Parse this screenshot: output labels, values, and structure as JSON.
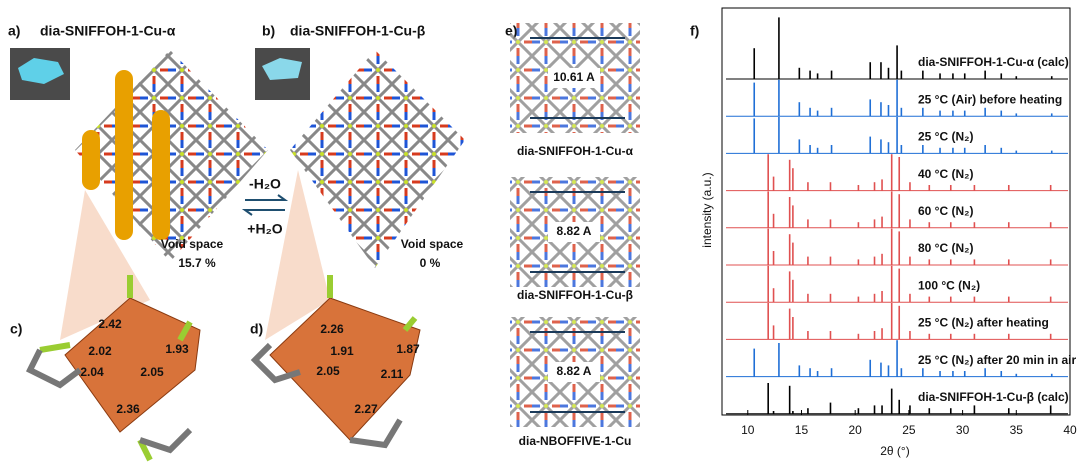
{
  "panels": {
    "a": {
      "label": "a)",
      "title": "dia-SNIFFOH-1-Cu-α",
      "void_label": "Void space",
      "void_value": "15.7 %"
    },
    "b": {
      "label": "b)",
      "title": "dia-SNIFFOH-1-Cu-β",
      "void_label": "Void space",
      "void_value": "0 %"
    },
    "arrows": {
      "forward": "-H₂O",
      "back": "+H₂O"
    },
    "c": {
      "label": "c)",
      "bonds": [
        "2.42",
        "2.02",
        "1.93",
        "2.04",
        "2.05",
        "2.36"
      ]
    },
    "d": {
      "label": "d)",
      "bonds": [
        "2.26",
        "1.91",
        "1.87",
        "2.05",
        "2.11",
        "2.27"
      ]
    },
    "e": {
      "label": "e)",
      "items": [
        {
          "distance": "10.61 A",
          "caption": "dia-SNIFFOH-1-Cu-α"
        },
        {
          "distance": "8.82 A",
          "caption": "dia-SNIFFOH-1-Cu-β"
        },
        {
          "distance": "8.82 A",
          "caption": "dia-NBOFFIVE-1-Cu"
        }
      ]
    }
  },
  "chart_data": {
    "type": "stacked-pattern",
    "label": "f)",
    "xlabel": "2θ (°)",
    "ylabel": "intensity (a.u.)",
    "xlim": [
      7.6,
      40
    ],
    "xticks": [
      10,
      15,
      20,
      25,
      30,
      35,
      40
    ],
    "series": [
      {
        "name": "dia-SNIFFOH-1-Cu-α (calc)",
        "color": "#000000",
        "peaks": [
          10.6,
          12.9,
          14.8,
          15.8,
          16.5,
          17.8,
          21.4,
          22.4,
          23.1,
          23.9,
          24.3,
          26.3,
          27.9,
          29.1,
          30.2,
          32.1,
          33.6,
          35.0,
          38.3
        ],
        "values": [
          1.1,
          2.2,
          0.4,
          0.3,
          0.2,
          0.3,
          0.6,
          0.6,
          0.4,
          1.2,
          0.3,
          0.3,
          0.2,
          0.2,
          0.2,
          0.3,
          0.2,
          0.1,
          0.1
        ]
      },
      {
        "name": "25 °C (Air) before heating",
        "color": "#1f6fd6",
        "peaks": [
          10.6,
          12.9,
          14.8,
          15.8,
          16.5,
          17.8,
          21.4,
          22.4,
          23.1,
          23.9,
          24.3,
          26.3,
          27.9,
          29.1,
          30.2,
          32.1,
          33.6,
          35.0,
          38.3
        ],
        "values": [
          1.2,
          1.3,
          0.5,
          0.3,
          0.2,
          0.3,
          0.6,
          0.5,
          0.4,
          1.3,
          0.3,
          0.3,
          0.2,
          0.2,
          0.2,
          0.3,
          0.2,
          0.1,
          0.1
        ]
      },
      {
        "name": "25 °C (N₂)",
        "color": "#1f6fd6",
        "peaks": [
          10.6,
          12.9,
          14.8,
          15.8,
          16.5,
          17.8,
          21.4,
          22.4,
          23.1,
          23.9,
          24.3,
          26.3,
          27.9,
          29.1,
          30.2,
          32.1,
          33.6,
          35.0,
          38.3
        ],
        "values": [
          1.25,
          1.3,
          0.5,
          0.3,
          0.2,
          0.3,
          0.6,
          0.5,
          0.4,
          1.3,
          0.3,
          0.3,
          0.2,
          0.2,
          0.2,
          0.3,
          0.2,
          0.1,
          0.1
        ]
      },
      {
        "name": "40 °C (N₂)",
        "color": "#e05050",
        "peaks": [
          11.9,
          12.4,
          13.9,
          14.2,
          15.6,
          17.7,
          20.3,
          21.8,
          22.5,
          23.4,
          24.1,
          25.1,
          26.9,
          28.9,
          31.1,
          34.3,
          38.2
        ],
        "values": [
          1.3,
          0.5,
          1.1,
          0.8,
          0.3,
          0.3,
          0.2,
          0.3,
          0.4,
          1.3,
          1.2,
          0.3,
          0.2,
          0.2,
          0.2,
          0.2,
          0.2
        ]
      },
      {
        "name": "60 °C (N₂)",
        "color": "#e05050",
        "peaks": [
          11.9,
          12.4,
          13.9,
          14.2,
          15.6,
          17.7,
          20.3,
          21.8,
          22.5,
          23.4,
          24.1,
          25.1,
          26.9,
          28.9,
          31.1,
          34.3,
          38.2
        ],
        "values": [
          1.3,
          0.5,
          1.1,
          0.8,
          0.3,
          0.3,
          0.2,
          0.3,
          0.4,
          1.3,
          1.2,
          0.3,
          0.2,
          0.2,
          0.2,
          0.2,
          0.2
        ]
      },
      {
        "name": "80 °C (N₂)",
        "color": "#e05050",
        "peaks": [
          11.9,
          12.4,
          13.9,
          14.2,
          15.6,
          17.7,
          20.3,
          21.8,
          22.5,
          23.4,
          24.1,
          25.1,
          26.9,
          28.9,
          31.1,
          34.3,
          38.2
        ],
        "values": [
          1.3,
          0.5,
          1.1,
          0.8,
          0.3,
          0.3,
          0.2,
          0.3,
          0.4,
          1.3,
          1.2,
          0.3,
          0.2,
          0.2,
          0.2,
          0.2,
          0.2
        ]
      },
      {
        "name": "100 °C (N₂)",
        "color": "#e05050",
        "peaks": [
          11.9,
          12.4,
          13.9,
          14.2,
          15.6,
          17.7,
          20.3,
          21.8,
          22.5,
          23.4,
          24.1,
          25.1,
          26.9,
          28.9,
          31.1,
          34.3,
          38.2
        ],
        "values": [
          1.3,
          0.5,
          1.1,
          0.8,
          0.3,
          0.3,
          0.2,
          0.3,
          0.4,
          1.3,
          1.2,
          0.3,
          0.2,
          0.2,
          0.2,
          0.2,
          0.2
        ]
      },
      {
        "name": "25 °C (N₂) after heating",
        "color": "#e05050",
        "peaks": [
          11.9,
          12.4,
          13.9,
          14.2,
          15.6,
          17.7,
          20.3,
          21.8,
          22.5,
          23.4,
          24.1,
          25.1,
          26.9,
          28.9,
          31.1,
          34.3,
          38.2
        ],
        "values": [
          1.3,
          0.5,
          1.1,
          0.8,
          0.3,
          0.3,
          0.2,
          0.3,
          0.4,
          1.3,
          1.2,
          0.3,
          0.2,
          0.2,
          0.2,
          0.2,
          0.2
        ]
      },
      {
        "name": "25 °C (N₂) after 20 min in air",
        "color": "#1f6fd6",
        "peaks": [
          10.6,
          12.9,
          14.8,
          15.8,
          16.5,
          17.8,
          21.4,
          22.4,
          23.1,
          23.9,
          24.3,
          26.3,
          27.9,
          29.1,
          30.2,
          32.1,
          33.6,
          35.0,
          38.3
        ],
        "values": [
          1.0,
          1.2,
          0.4,
          0.3,
          0.2,
          0.3,
          0.6,
          0.5,
          0.4,
          1.3,
          0.3,
          0.3,
          0.2,
          0.2,
          0.2,
          0.3,
          0.2,
          0.1,
          0.1
        ]
      },
      {
        "name": "dia-SNIFFOH-1-Cu-β (calc)",
        "color": "#000000",
        "peaks": [
          11.9,
          12.4,
          13.9,
          14.2,
          15.6,
          17.7,
          20.3,
          21.8,
          22.5,
          23.4,
          24.1,
          25.1,
          26.9,
          28.9,
          31.1,
          34.3,
          38.2
        ],
        "values": [
          1.1,
          0.1,
          1.0,
          0.1,
          0.2,
          0.4,
          0.2,
          0.3,
          0.3,
          0.9,
          0.5,
          0.3,
          0.2,
          0.2,
          0.3,
          0.2,
          0.3
        ]
      }
    ]
  }
}
